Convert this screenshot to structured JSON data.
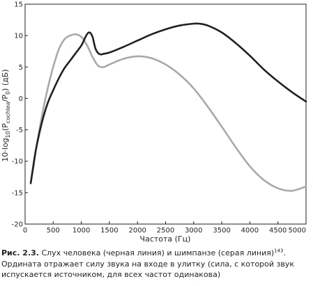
{
  "chart_data": {
    "type": "line",
    "xlabel": "Частота (Гц)",
    "ylabel": {
      "prefix": "10·log",
      "base_sub": "10",
      "open": "(P",
      "num_sub": "cochlea",
      "mid": "/P",
      "den_sub": "0",
      "close": ") (дБ)"
    },
    "xlim": [
      0,
      5000
    ],
    "ylim": [
      -20,
      15
    ],
    "xticks": [
      0,
      500,
      1000,
      1500,
      2000,
      2500,
      3000,
      3500,
      4000,
      4500,
      5000
    ],
    "yticks": [
      -20,
      -15,
      -10,
      -5,
      0,
      5,
      10,
      15
    ],
    "grid": false,
    "legend": "none",
    "series": [
      {
        "key": "human",
        "color": "#231f20",
        "points": [
          [
            100,
            -13.5
          ],
          [
            150,
            -10.5
          ],
          [
            200,
            -7.8
          ],
          [
            300,
            -3.8
          ],
          [
            400,
            -0.8
          ],
          [
            500,
            1.3
          ],
          [
            600,
            3.2
          ],
          [
            700,
            4.8
          ],
          [
            800,
            6.0
          ],
          [
            900,
            7.2
          ],
          [
            1000,
            8.4
          ],
          [
            1050,
            9.3
          ],
          [
            1100,
            10.2
          ],
          [
            1150,
            10.5
          ],
          [
            1200,
            9.8
          ],
          [
            1250,
            8.0
          ],
          [
            1300,
            7.2
          ],
          [
            1350,
            7.0
          ],
          [
            1400,
            7.1
          ],
          [
            1500,
            7.3
          ],
          [
            1750,
            8.2
          ],
          [
            2000,
            9.2
          ],
          [
            2250,
            10.2
          ],
          [
            2500,
            11.0
          ],
          [
            2750,
            11.6
          ],
          [
            3000,
            11.9
          ],
          [
            3100,
            11.9
          ],
          [
            3250,
            11.6
          ],
          [
            3500,
            10.5
          ],
          [
            3750,
            8.8
          ],
          [
            4000,
            6.8
          ],
          [
            4250,
            4.6
          ],
          [
            4500,
            2.7
          ],
          [
            4750,
            1.0
          ],
          [
            5000,
            -0.5
          ]
        ]
      },
      {
        "key": "chimpanzee",
        "color": "#a7a9ac",
        "points": [
          [
            100,
            -13.5
          ],
          [
            150,
            -10.8
          ],
          [
            200,
            -7.8
          ],
          [
            300,
            -2.8
          ],
          [
            400,
            1.5
          ],
          [
            500,
            5.0
          ],
          [
            600,
            7.8
          ],
          [
            700,
            9.4
          ],
          [
            800,
            10.0
          ],
          [
            900,
            10.2
          ],
          [
            1000,
            9.8
          ],
          [
            1100,
            8.5
          ],
          [
            1200,
            6.6
          ],
          [
            1300,
            5.2
          ],
          [
            1400,
            5.0
          ],
          [
            1500,
            5.4
          ],
          [
            1750,
            6.3
          ],
          [
            2000,
            6.7
          ],
          [
            2250,
            6.4
          ],
          [
            2500,
            5.4
          ],
          [
            2750,
            3.8
          ],
          [
            3000,
            1.6
          ],
          [
            3250,
            -1.3
          ],
          [
            3500,
            -4.5
          ],
          [
            3750,
            -7.8
          ],
          [
            4000,
            -10.8
          ],
          [
            4250,
            -13.0
          ],
          [
            4500,
            -14.3
          ],
          [
            4750,
            -14.7
          ],
          [
            5000,
            -14.0
          ]
        ]
      }
    ]
  },
  "caption": {
    "figure_label": "Рис. 2.3.",
    "text": "Слух человека (черная линия) и шимпанзе (серая линия)",
    "note_ref": "143",
    "text_end": ". Ордината отражает силу звука на входе в улитку (сила, с которой звук испускается источником, для всех частот одинакова)"
  }
}
